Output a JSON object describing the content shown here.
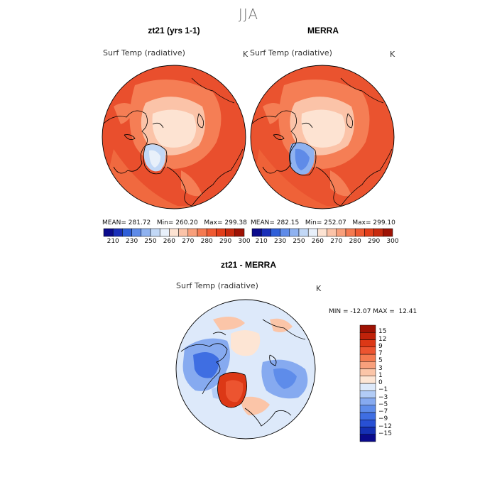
{
  "figure": {
    "season_title": "JJA"
  },
  "chart_data": [
    {
      "type": "heatmap",
      "projection": "polar-stereographic",
      "title": "zt21 (yrs 1-1)",
      "variable": "Surf Temp (radiative)",
      "units": "K",
      "stats": {
        "mean_label": "MEAN=",
        "mean": "281.72",
        "min_label": "Min=",
        "min": "260.20",
        "max_label": "Max=",
        "max": "299.38"
      },
      "colorbar": {
        "colors": [
          "#0a0a8c",
          "#1a2fb8",
          "#2f5fd8",
          "#5f8be8",
          "#8fb2f0",
          "#c2d8f6",
          "#e8f0fa",
          "#fde3d2",
          "#fbc3a8",
          "#f89f7b",
          "#f57a51",
          "#ef5a32",
          "#e23e1a",
          "#c82a0e",
          "#9e1204"
        ],
        "tick_labels": [
          "210",
          "230",
          "250",
          "260",
          "270",
          "280",
          "290",
          "300"
        ]
      }
    },
    {
      "type": "heatmap",
      "projection": "polar-stereographic",
      "title": "MERRA",
      "variable": "Surf Temp (radiative)",
      "units": "K",
      "stats": {
        "mean_label": "MEAN=",
        "mean": "282.15",
        "min_label": "Min=",
        "min": "252.07",
        "max_label": "Max=",
        "max": "299.10"
      },
      "colorbar": {
        "colors": [
          "#0a0a8c",
          "#1a2fb8",
          "#2f5fd8",
          "#5f8be8",
          "#8fb2f0",
          "#c2d8f6",
          "#e8f0fa",
          "#fde3d2",
          "#fbc3a8",
          "#f89f7b",
          "#f57a51",
          "#ef5a32",
          "#e23e1a",
          "#c82a0e",
          "#9e1204"
        ],
        "tick_labels": [
          "210",
          "230",
          "250",
          "260",
          "270",
          "280",
          "290",
          "300"
        ]
      }
    },
    {
      "type": "heatmap",
      "projection": "polar-stereographic",
      "title": "zt21 - MERRA",
      "variable": "Surf Temp (radiative)",
      "units": "K",
      "minmax_text": "MIN = -12.07 MAX =  12.41",
      "colorbar": {
        "colors": [
          "#0a0a8c",
          "#1530b4",
          "#2850d4",
          "#3f6ee2",
          "#5e8cea",
          "#86aaf0",
          "#b2ccf6",
          "#dde9fa",
          "#fde5d4",
          "#fbc5a8",
          "#f8a07c",
          "#f47a50",
          "#ec5430",
          "#dc3816",
          "#c0220a",
          "#9e1204"
        ],
        "tick_labels": [
          "15",
          "12",
          "9",
          "7",
          "5",
          "3",
          "1",
          "0",
          "-1",
          "-3",
          "-5",
          "-7",
          "-9",
          "-12",
          "-15"
        ]
      }
    }
  ]
}
